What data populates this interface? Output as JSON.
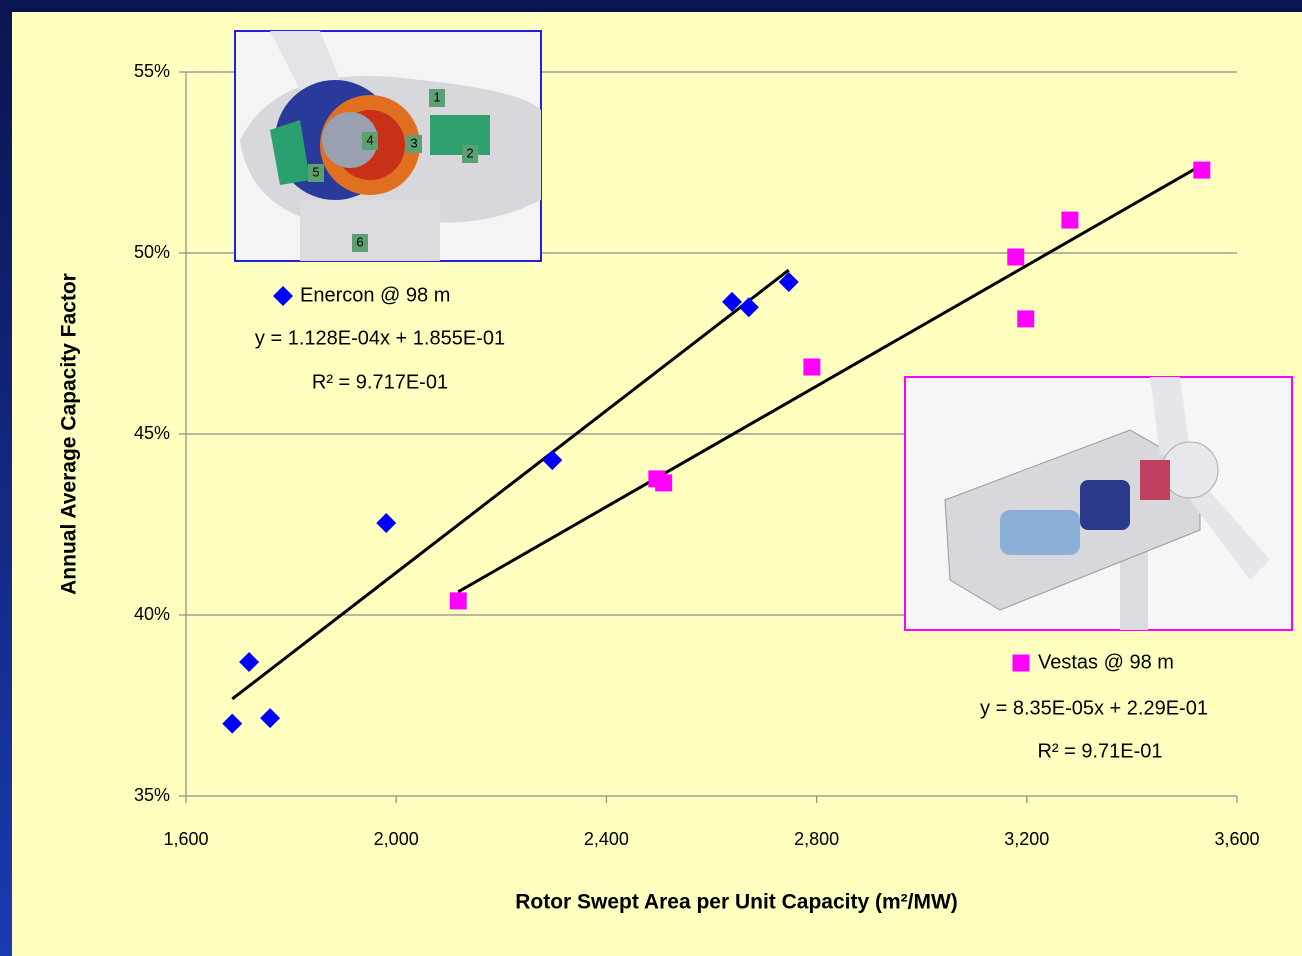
{
  "chart_data": {
    "type": "scatter",
    "x_label": "Rotor Swept Area per Unit Capacity (m²/MW)",
    "y_label": "Annual Average Capacity Factor",
    "xlim": [
      1600,
      3600
    ],
    "xticks": [
      {
        "value": 1600,
        "label": "1,600"
      },
      {
        "value": 2000,
        "label": "2,000"
      },
      {
        "value": 2400,
        "label": "2,400"
      },
      {
        "value": 2800,
        "label": "2,800"
      },
      {
        "value": 3200,
        "label": "3,200"
      },
      {
        "value": 3600,
        "label": "3,600"
      }
    ],
    "ylim": [
      35,
      55
    ],
    "yticks": [
      {
        "value": 35,
        "label": "35%"
      },
      {
        "value": 40,
        "label": "40%"
      },
      {
        "value": 45,
        "label": "45%"
      },
      {
        "value": 50,
        "label": "50%"
      },
      {
        "value": 55,
        "label": "55%"
      }
    ],
    "grid": true,
    "series": [
      {
        "name": "Enercon @ 98 m",
        "color": "#0000ff",
        "marker": "diamond",
        "equation": "y = 1.128E-04x + 1.855E-01",
        "r2": "R² = 9.717E-01",
        "x": [
          1688,
          1720,
          1760,
          1981,
          2297,
          2639,
          2671,
          2747
        ],
        "values": [
          37.0,
          38.7,
          37.15,
          42.54,
          44.28,
          48.65,
          48.5,
          49.2
        ],
        "trendline": {
          "x": [
            1688,
            2747
          ],
          "values": [
            37.68,
            49.53
          ]
        }
      },
      {
        "name": "Vestas @ 98 m",
        "color": "#ff00ff",
        "marker": "square",
        "equation": "y = 8.35E-05x + 2.29E-01",
        "r2": "R² = 9.71E-01",
        "x": [
          2118,
          2496,
          2509,
          2791,
          3179,
          3198,
          3282,
          3533
        ],
        "values": [
          40.39,
          43.76,
          43.65,
          46.85,
          49.89,
          48.18,
          50.91,
          52.29
        ],
        "trendline": {
          "x": [
            2118,
            3533
          ],
          "values": [
            40.64,
            52.43
          ]
        }
      }
    ],
    "image_labels": [
      "1",
      "2",
      "3",
      "4",
      "5",
      "6"
    ]
  }
}
